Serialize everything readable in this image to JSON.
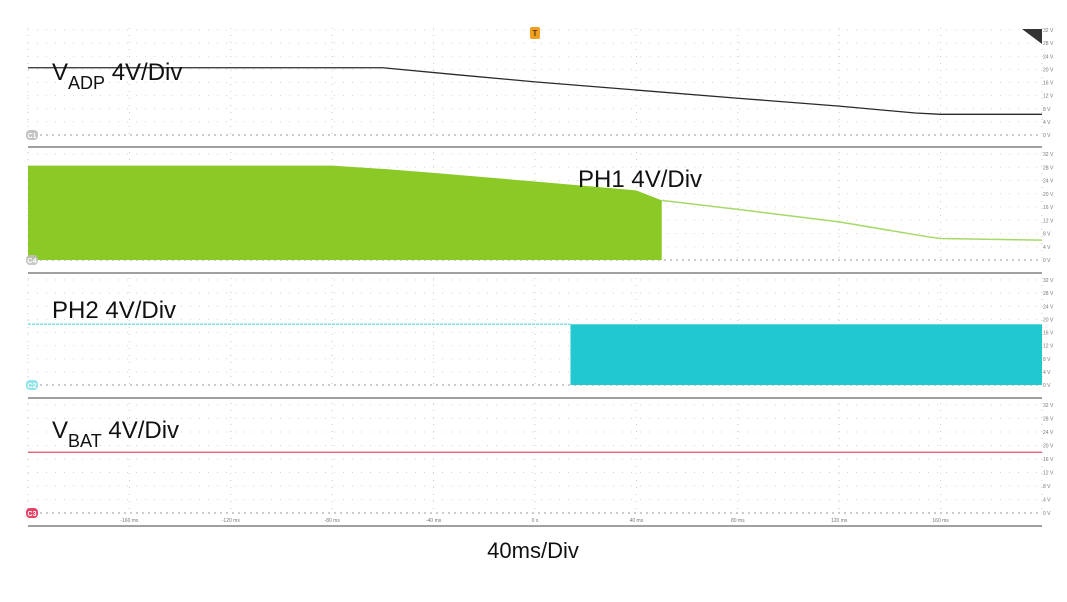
{
  "time_per_div_label": "40ms/Div",
  "trigger_marker": "T",
  "chart_data": [
    {
      "type": "line",
      "channel_tag": "C1",
      "label_main": "V",
      "label_sub": "ADP",
      "label_suffix": " 4V/Div",
      "color": "#2a2a2a",
      "marker_color": "#b8b8b8",
      "units": "V",
      "ylim": [
        0,
        32
      ],
      "yticks": [
        "32 V",
        "28 V",
        "24 V",
        "20 V",
        "16 V",
        "12 V",
        "8 V",
        "4 V",
        "0 V"
      ],
      "points": [
        [
          -200,
          20.5
        ],
        [
          -60,
          20.5
        ],
        [
          -30,
          18.3
        ],
        [
          0,
          16.2
        ],
        [
          40,
          13.7
        ],
        [
          80,
          11.2
        ],
        [
          120,
          8.8
        ],
        [
          150,
          6.7
        ],
        [
          160,
          6.3
        ],
        [
          200,
          6.3
        ]
      ]
    },
    {
      "type": "area",
      "channel_tag": "C4",
      "label_main": "PH1",
      "label_sub": "",
      "label_suffix": " 4V/Div",
      "color": "#8ac926",
      "line_color": "#a6d96a",
      "marker_color": "#c0c0c0",
      "units": "V",
      "ylim": [
        0,
        32
      ],
      "yticks": [
        "32 V",
        "28 V",
        "24 V",
        "20 V",
        "16 V",
        "12 V",
        "8 V",
        "4 V",
        "0 V"
      ],
      "fill_end_x": 50,
      "points": [
        [
          -200,
          28.5
        ],
        [
          -80,
          28.5
        ],
        [
          -60,
          27.5
        ],
        [
          -40,
          26.3
        ],
        [
          0,
          23.7
        ],
        [
          40,
          21.0
        ],
        [
          50,
          18.0
        ],
        [
          80,
          15.3
        ],
        [
          120,
          11.5
        ],
        [
          155,
          7.0
        ],
        [
          160,
          6.5
        ],
        [
          200,
          6.0
        ]
      ]
    },
    {
      "type": "area",
      "channel_tag": "C2",
      "label_main": "PH2",
      "label_sub": "",
      "label_suffix": " 4V/Div",
      "color": "#22c8d0",
      "line_color": "#7fe0e6",
      "marker_color": "#7fe0e6",
      "units": "V",
      "ylim": [
        0,
        32
      ],
      "yticks": [
        "32 V",
        "28 V",
        "24 V",
        "20 V",
        "16 V",
        "12 V",
        "8 V",
        "4 V",
        "0 V"
      ],
      "fill_start_x": 14,
      "points": [
        [
          -200,
          18.5
        ],
        [
          14,
          18.5
        ],
        [
          200,
          18.5
        ]
      ]
    },
    {
      "type": "line",
      "channel_tag": "C3",
      "label_main": "V",
      "label_sub": "BAT",
      "label_suffix": " 4V/Div",
      "color": "#e0506a",
      "marker_color": "#e0204a",
      "units": "V",
      "ylim": [
        0,
        32
      ],
      "yticks": [
        "32 V",
        "28 V",
        "24 V",
        "20 V",
        "16 V",
        "12 V",
        "8 V",
        "4 V",
        "0 V"
      ],
      "points": [
        [
          -200,
          18.0
        ],
        [
          200,
          18.0
        ]
      ]
    }
  ],
  "x_axis": {
    "units": "ms",
    "xlim": [
      -200,
      200
    ],
    "ticks": [
      -160,
      -120,
      -80,
      -40,
      0,
      40,
      80,
      120,
      160
    ],
    "tick_labels": [
      "-160 ms",
      "-120 ms",
      "-80 ms",
      "-40 ms",
      "0 s",
      "40 ms",
      "80 ms",
      "120 ms",
      "160 ms"
    ]
  }
}
